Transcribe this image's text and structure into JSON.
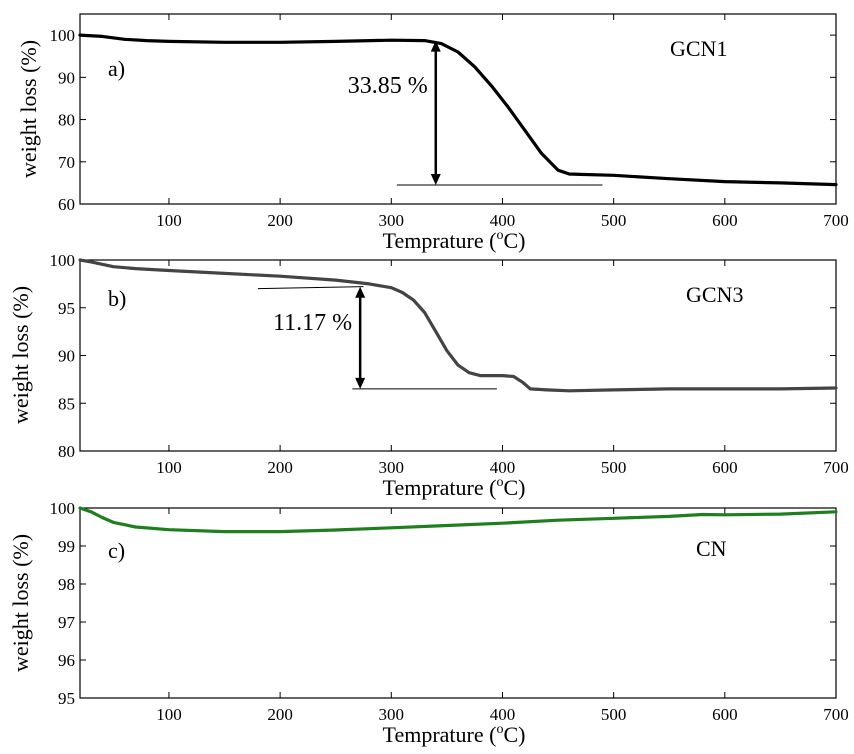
{
  "chart_data": [
    {
      "type": "line",
      "panel_label": "a)",
      "series_label": "GCN1",
      "xlabel": "Temprature (°C)",
      "xlabel_prefix": "Temprature (",
      "xlabel_unit_sup": "o",
      "xlabel_unit": "C)",
      "ylabel": "weight loss (%)",
      "xlim": [
        20,
        700
      ],
      "ylim": [
        60,
        105
      ],
      "xticks": [
        100,
        200,
        300,
        400,
        500,
        600,
        700
      ],
      "yticks": [
        60,
        70,
        80,
        90,
        100
      ],
      "color": "#000000",
      "annotation": {
        "text": "33.85 %",
        "x": 340,
        "y_top": 98.7,
        "y_bottom": 64.5,
        "line_x": [
          305,
          490
        ],
        "line_y": 64.5
      },
      "series": [
        {
          "name": "GCN1",
          "x": [
            20,
            40,
            60,
            80,
            100,
            150,
            200,
            250,
            300,
            330,
            345,
            360,
            375,
            390,
            405,
            420,
            435,
            450,
            460,
            470,
            500,
            550,
            600,
            650,
            700
          ],
          "y": [
            100,
            99.7,
            99.0,
            98.7,
            98.5,
            98.3,
            98.3,
            98.5,
            98.8,
            98.7,
            98.0,
            96.0,
            92.5,
            88.0,
            83.0,
            77.5,
            72.0,
            68.0,
            67.1,
            67.0,
            66.8,
            66.0,
            65.3,
            65.0,
            64.6
          ]
        }
      ]
    },
    {
      "type": "line",
      "panel_label": "b)",
      "series_label": "GCN3",
      "xlabel": "Temprature (°C)",
      "xlabel_prefix": "Temprature (",
      "xlabel_unit_sup": "o",
      "xlabel_unit": "C)",
      "ylabel": "weight loss (%)",
      "xlim": [
        20,
        700
      ],
      "ylim": [
        80,
        100
      ],
      "xticks": [
        100,
        200,
        300,
        400,
        500,
        600,
        700
      ],
      "yticks": [
        80,
        85,
        90,
        95,
        100
      ],
      "color": "#444444",
      "annotation": {
        "text": "11.17 %",
        "x": 272,
        "y_top": 97.2,
        "y_bottom": 86.5,
        "top_line_x": [
          180,
          275
        ],
        "top_line_y": 97.0,
        "bottom_line_x": [
          265,
          395
        ],
        "bottom_line_y": 86.5
      },
      "series": [
        {
          "name": "GCN3",
          "x": [
            20,
            30,
            50,
            70,
            100,
            150,
            200,
            250,
            280,
            300,
            310,
            320,
            330,
            340,
            350,
            360,
            370,
            380,
            390,
            400,
            410,
            418,
            425,
            440,
            460,
            500,
            550,
            600,
            650,
            700
          ],
          "y": [
            100,
            99.8,
            99.3,
            99.1,
            98.9,
            98.6,
            98.3,
            97.9,
            97.5,
            97.1,
            96.6,
            95.8,
            94.5,
            92.5,
            90.5,
            89.0,
            88.2,
            87.9,
            87.9,
            87.9,
            87.8,
            87.2,
            86.5,
            86.4,
            86.3,
            86.4,
            86.5,
            86.5,
            86.5,
            86.6
          ]
        }
      ]
    },
    {
      "type": "line",
      "panel_label": "c)",
      "series_label": "CN",
      "xlabel": "Temprature (°C)",
      "xlabel_prefix": "Temprature (",
      "xlabel_unit_sup": "o",
      "xlabel_unit": "C)",
      "ylabel": "weight loss (%)",
      "xlim": [
        20,
        700
      ],
      "ylim": [
        95,
        100
      ],
      "xticks": [
        100,
        200,
        300,
        400,
        500,
        600,
        700
      ],
      "yticks": [
        95,
        96,
        97,
        98,
        99,
        100
      ],
      "color": "#1f7f1f",
      "series": [
        {
          "name": "CN",
          "x": [
            20,
            30,
            40,
            50,
            70,
            100,
            150,
            200,
            250,
            300,
            350,
            400,
            450,
            500,
            550,
            580,
            600,
            650,
            700
          ],
          "y": [
            100,
            99.9,
            99.75,
            99.62,
            99.5,
            99.43,
            99.38,
            99.38,
            99.42,
            99.48,
            99.54,
            99.6,
            99.68,
            99.73,
            99.78,
            99.83,
            99.82,
            99.84,
            99.9
          ]
        }
      ]
    }
  ]
}
